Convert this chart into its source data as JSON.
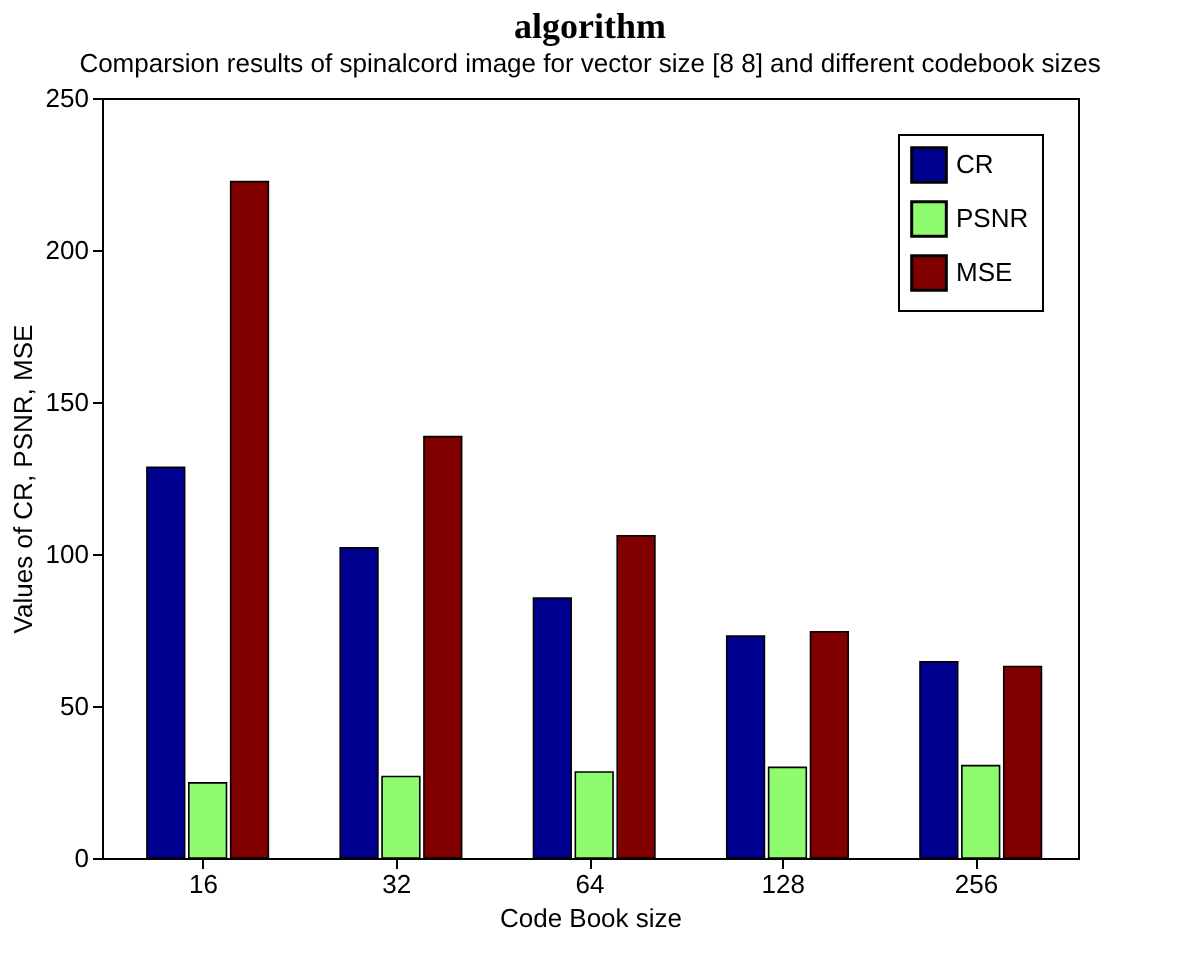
{
  "chart_data": {
    "type": "bar",
    "title": "algorithm",
    "subtitle": "Comparsion results of spinalcord image for vector size [8 8] and different codebook sizes",
    "xlabel": "Code Book size",
    "ylabel": "Values of CR, PSNR, MSE",
    "categories": [
      "16",
      "32",
      "64",
      "128",
      "256"
    ],
    "series": [
      {
        "name": "CR",
        "color": "#000090",
        "values": [
          128.5,
          102,
          85.5,
          73,
          64.5
        ]
      },
      {
        "name": "PSNR",
        "color": "#8ffc70",
        "values": [
          24.7,
          26.8,
          28.3,
          29.8,
          30.4
        ]
      },
      {
        "name": "MSE",
        "color": "#800000",
        "values": [
          222.5,
          138.6,
          106,
          74.4,
          63
        ]
      }
    ],
    "ylim": [
      0,
      250
    ],
    "yticks": [
      0,
      50,
      100,
      150,
      200,
      250
    ],
    "grid": false,
    "legend": "top right"
  }
}
